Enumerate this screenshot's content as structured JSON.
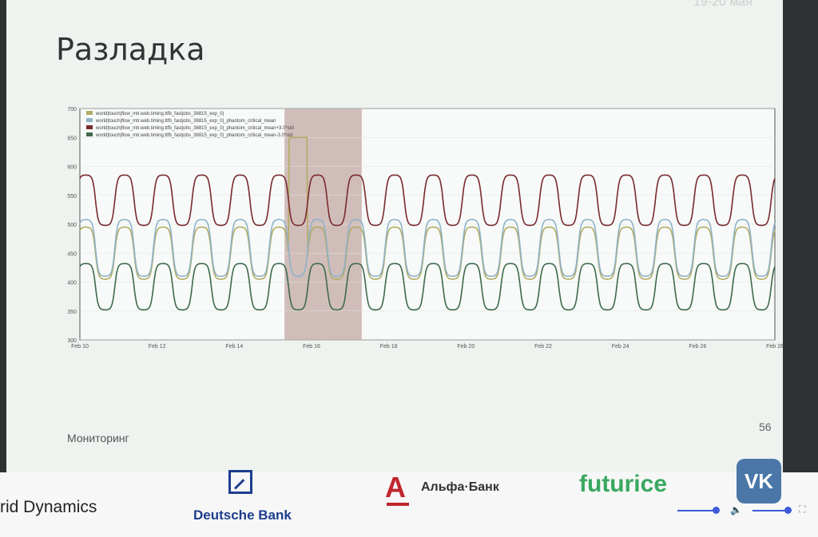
{
  "slide": {
    "title": "Разладка",
    "corner_date": "19-20 мая",
    "page_number": "56",
    "section": "Мониторинг"
  },
  "sponsors": {
    "grid_dynamics": "rid Dynamics",
    "deutsche_bank": "Deutsche Bank",
    "alfa_letter": "А",
    "alfa_bank": "Альфа·Банк",
    "futurice": "futurice",
    "vk": "VK"
  },
  "colors": {
    "upper": "#7a2a2e",
    "mean": "#8fb2c9",
    "value": "#b3ab63",
    "lower": "#3f6a4c",
    "anomaly_band": "#b08b86"
  },
  "icons": [
    "deutsche-bank-logo-icon",
    "alfa-bank-logo-icon",
    "vk-logo-icon",
    "volume-icon",
    "fullscreen-icon"
  ],
  "chart_data": {
    "type": "line",
    "title": "",
    "xlabel": "",
    "ylabel": "",
    "ylim": [
      300,
      700
    ],
    "yticks": [
      300,
      350,
      400,
      450,
      500,
      550,
      600,
      650,
      700
    ],
    "xlim": [
      "2019-02-10",
      "2019-02-28"
    ],
    "xticks": [
      "Feb 10",
      "Feb 12",
      "Feb 14",
      "Feb 16",
      "Feb 18",
      "Feb 20",
      "Feb 22",
      "Feb 24",
      "Feb 26",
      "Feb 28"
    ],
    "grid": true,
    "legend_position": "top-left",
    "period_days": 1,
    "anomaly_ranges": [
      [
        "2019-02-15.3",
        "2019-02-16.4"
      ],
      [
        "2019-02-16.4",
        "2019-02-17.3"
      ]
    ],
    "series": [
      {
        "name": "world|touch|flow_mtr.web.timing.ttfb_fastjobs_38815_exp_0|",
        "color_key": "value",
        "peak": 495,
        "trough": 405
      },
      {
        "name": "world|touch|flow_mtr.web.timing.ttfb_fastjobs_38815_exp_0|_phantom_critical_mean",
        "color_key": "mean",
        "peak": 508,
        "trough": 410
      },
      {
        "name": "world|touch|flow_mtr.web.timing.ttfb_fastjobs_38815_exp_0|_phantom_critical_mean+3.0*std",
        "color_key": "upper",
        "peak": 585,
        "trough": 498
      },
      {
        "name": "world|touch|flow_mtr.web.timing.ttfb_fastjobs_38815_exp_0|_phantom_critical_mean-3.0*std",
        "color_key": "lower",
        "peak": 432,
        "trough": 352
      }
    ]
  }
}
